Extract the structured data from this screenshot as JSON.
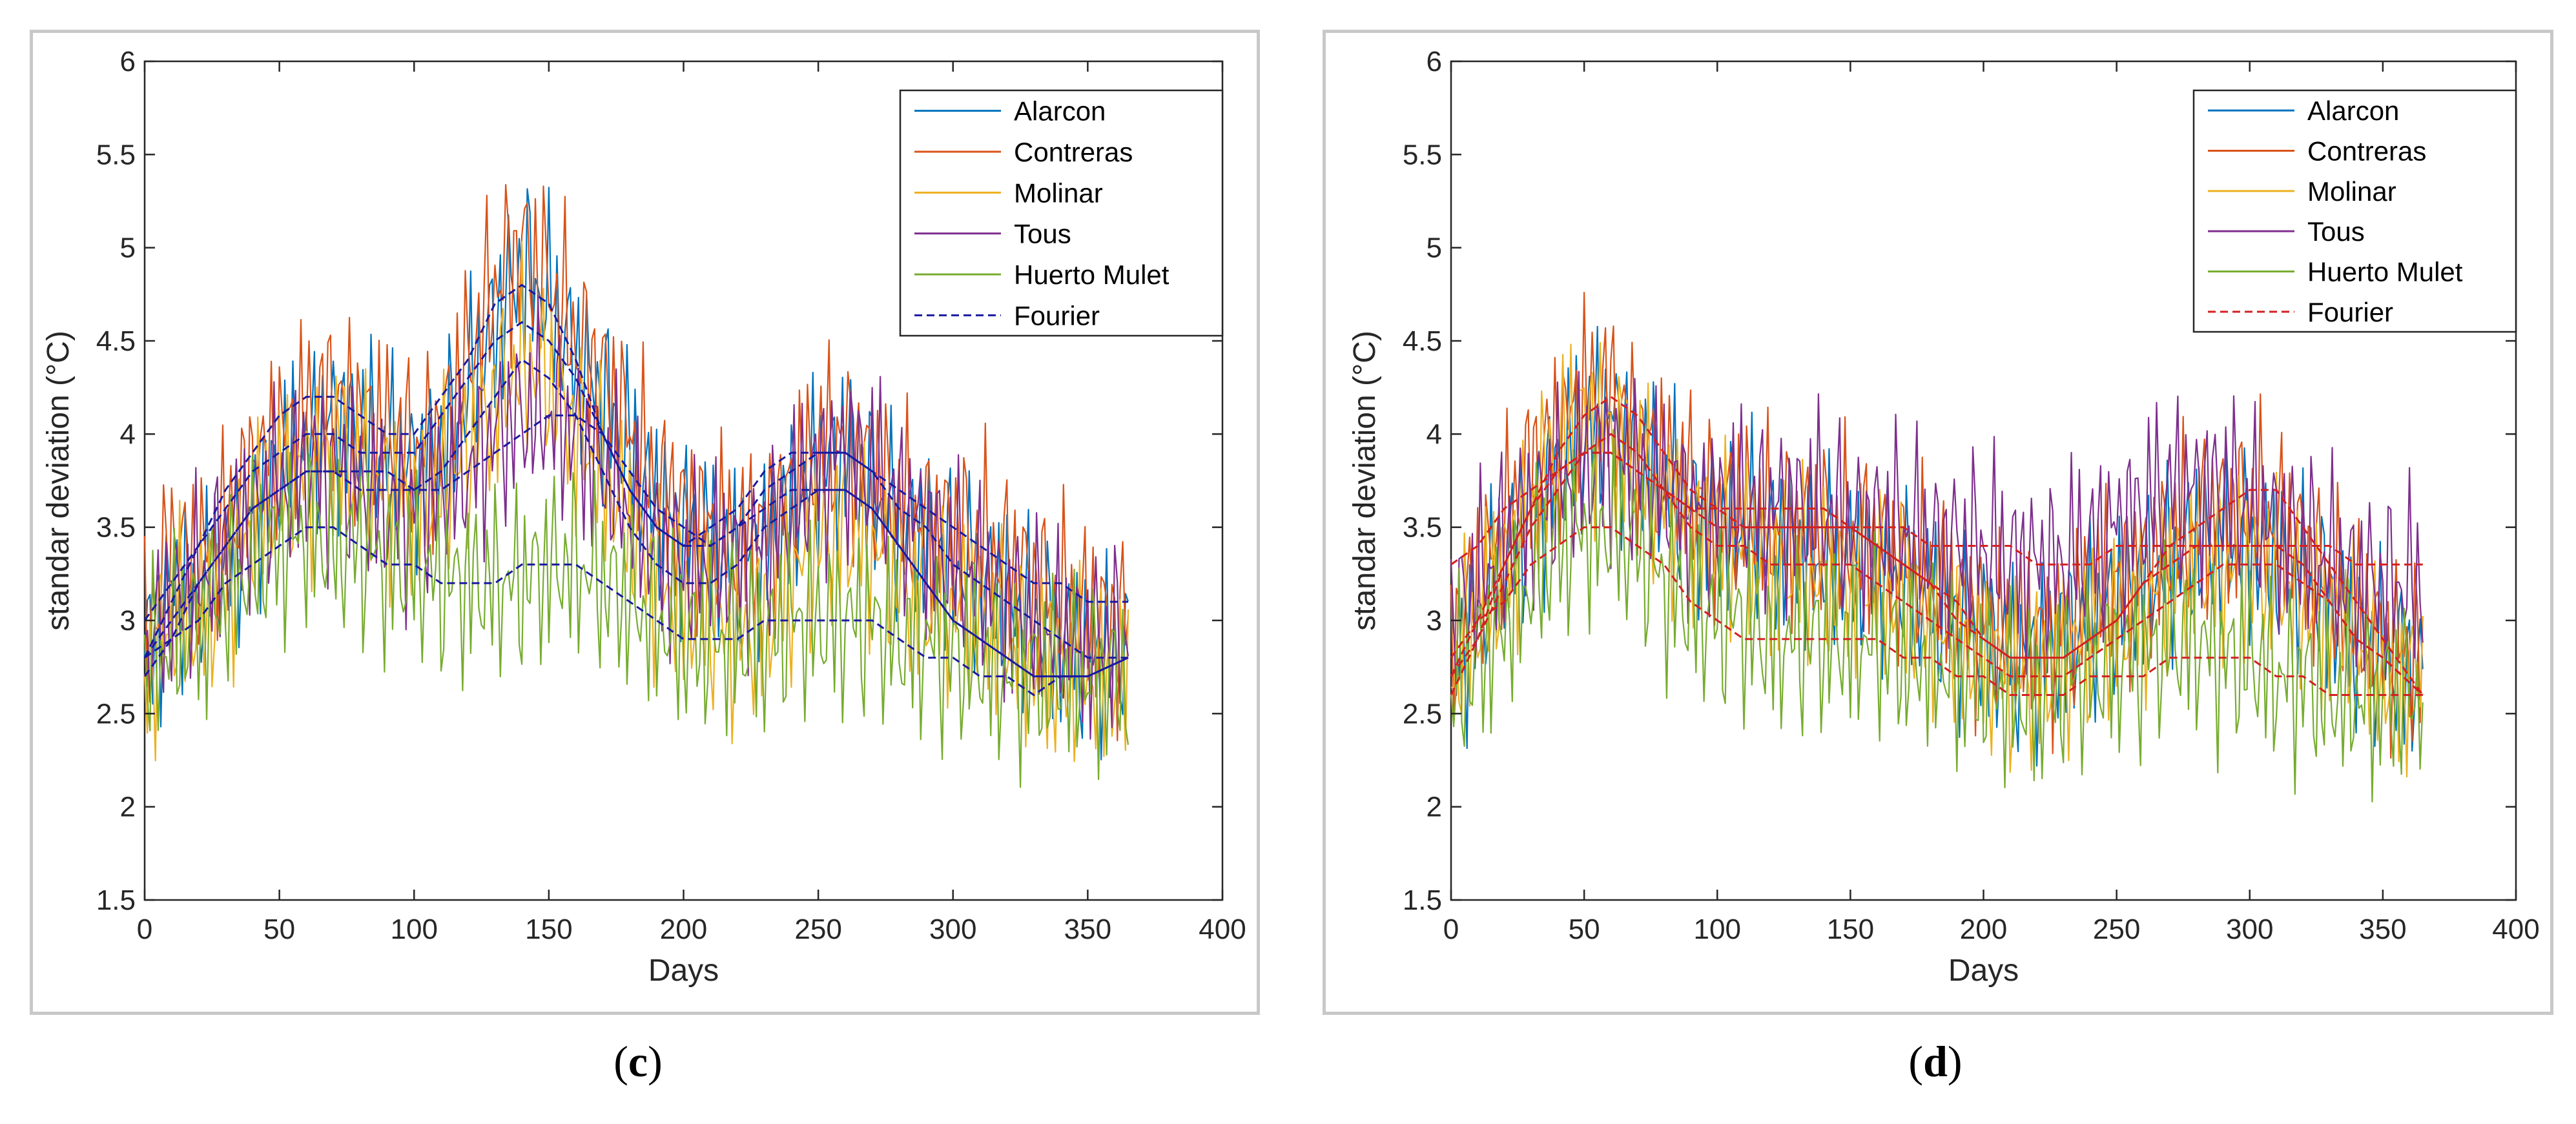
{
  "colors": {
    "Alarcon": "#0072bd",
    "Contreras": "#d95319",
    "Molinar": "#edb120",
    "Tous": "#7e2f8e",
    "Huerto Mulet": "#77ac30",
    "fourier_c": "#1a1aa0",
    "fourier_d": "#d42020"
  },
  "captions": {
    "c": "c",
    "d": "d"
  },
  "chart_data": [
    {
      "id": "c",
      "type": "line",
      "xlabel": "Days",
      "ylabel": "standar deviation (°C)",
      "xlim": [
        0,
        400
      ],
      "ylim": [
        1.5,
        6
      ],
      "xticks": [
        "0",
        "50",
        "100",
        "150",
        "200",
        "250",
        "300",
        "350",
        "400"
      ],
      "yticks": [
        "1.5",
        "2",
        "2.5",
        "3",
        "3.5",
        "4",
        "4.5",
        "5",
        "5.5",
        "6"
      ],
      "grid": false,
      "legend_position": "top-right",
      "legend": [
        "Alarcon",
        "Contreras",
        "Molinar",
        "Tous",
        "Huerto Mulet",
        "Fourier"
      ],
      "fourier_style": "dashed",
      "x": [
        0,
        10,
        20,
        30,
        40,
        50,
        60,
        70,
        80,
        90,
        100,
        110,
        120,
        130,
        140,
        150,
        160,
        170,
        180,
        190,
        200,
        210,
        220,
        230,
        240,
        250,
        260,
        270,
        280,
        290,
        300,
        310,
        320,
        330,
        340,
        350,
        365
      ],
      "series": [
        {
          "name": "Alarcon",
          "values": [
            2.8,
            3.2,
            3.1,
            3.3,
            3.6,
            3.8,
            3.9,
            4.1,
            4.0,
            3.9,
            3.8,
            3.9,
            4.2,
            4.6,
            4.9,
            4.7,
            4.4,
            4.2,
            3.9,
            3.6,
            3.5,
            3.4,
            3.3,
            3.4,
            3.6,
            3.8,
            3.9,
            3.7,
            3.5,
            3.4,
            3.3,
            3.2,
            3.1,
            3.0,
            2.9,
            2.8,
            2.8
          ]
        },
        {
          "name": "Contreras",
          "values": [
            2.9,
            3.4,
            3.3,
            3.5,
            3.8,
            4.0,
            4.1,
            4.2,
            4.1,
            4.0,
            3.9,
            4.0,
            4.4,
            4.8,
            5.0,
            4.8,
            4.5,
            4.3,
            4.0,
            3.7,
            3.6,
            3.5,
            3.4,
            3.5,
            3.7,
            3.9,
            4.0,
            3.8,
            3.6,
            3.5,
            3.5,
            3.4,
            3.3,
            3.2,
            3.1,
            3.0,
            3.0
          ]
        },
        {
          "name": "Molinar",
          "values": [
            2.7,
            3.0,
            3.0,
            3.2,
            3.5,
            3.7,
            3.8,
            3.9,
            3.8,
            3.7,
            3.6,
            3.7,
            3.9,
            4.2,
            4.4,
            4.3,
            4.0,
            3.8,
            3.5,
            3.2,
            3.1,
            3.0,
            2.9,
            3.0,
            3.2,
            3.4,
            3.5,
            3.4,
            3.2,
            3.1,
            3.1,
            3.0,
            2.9,
            2.8,
            2.7,
            2.7,
            2.7
          ]
        },
        {
          "name": "Tous",
          "values": [
            2.8,
            3.1,
            3.2,
            3.4,
            3.6,
            3.7,
            3.8,
            3.8,
            3.7,
            3.6,
            3.6,
            3.7,
            3.8,
            4.0,
            4.1,
            4.1,
            4.0,
            3.8,
            3.6,
            3.4,
            3.3,
            3.3,
            3.3,
            3.4,
            3.6,
            3.8,
            3.9,
            3.8,
            3.6,
            3.5,
            3.3,
            3.2,
            3.1,
            3.0,
            2.9,
            2.9,
            2.9
          ]
        },
        {
          "name": "Huerto Mulet",
          "values": [
            2.7,
            2.9,
            3.0,
            3.1,
            3.3,
            3.4,
            3.5,
            3.4,
            3.4,
            3.3,
            3.3,
            3.2,
            3.2,
            3.2,
            3.2,
            3.3,
            3.3,
            3.2,
            3.1,
            3.0,
            2.9,
            2.9,
            2.9,
            2.9,
            3.0,
            3.0,
            3.0,
            3.0,
            2.9,
            2.9,
            2.8,
            2.8,
            2.7,
            2.7,
            2.7,
            2.7,
            2.7
          ]
        }
      ],
      "fourier": [
        [
          2.8,
          3.1,
          3.4,
          3.7,
          3.9,
          4.1,
          4.2,
          4.2,
          4.1,
          4.0,
          4.0,
          4.2,
          4.4,
          4.7,
          4.8,
          4.7,
          4.4,
          4.0,
          3.7,
          3.5,
          3.4,
          3.4,
          3.5,
          3.7,
          3.8,
          3.9,
          3.9,
          3.8,
          3.6,
          3.5,
          3.3,
          3.2,
          3.1,
          3.0,
          2.9,
          2.8,
          2.8
        ],
        [
          3.0,
          3.2,
          3.4,
          3.6,
          3.8,
          3.9,
          4.0,
          4.0,
          3.9,
          3.9,
          3.9,
          4.1,
          4.3,
          4.5,
          4.6,
          4.5,
          4.3,
          4.0,
          3.7,
          3.5,
          3.4,
          3.5,
          3.6,
          3.8,
          3.9,
          3.9,
          3.9,
          3.8,
          3.7,
          3.6,
          3.5,
          3.4,
          3.3,
          3.2,
          3.2,
          3.1,
          3.1
        ],
        [
          2.7,
          2.9,
          3.2,
          3.4,
          3.6,
          3.7,
          3.8,
          3.8,
          3.7,
          3.7,
          3.7,
          3.8,
          4.0,
          4.2,
          4.4,
          4.3,
          4.1,
          3.8,
          3.5,
          3.3,
          3.2,
          3.2,
          3.3,
          3.5,
          3.6,
          3.7,
          3.7,
          3.6,
          3.4,
          3.2,
          3.0,
          2.9,
          2.8,
          2.7,
          2.7,
          2.7,
          2.8
        ],
        [
          2.8,
          3.0,
          3.2,
          3.4,
          3.6,
          3.7,
          3.8,
          3.8,
          3.8,
          3.8,
          3.7,
          3.7,
          3.8,
          3.9,
          4.0,
          4.1,
          4.1,
          4.0,
          3.8,
          3.6,
          3.5,
          3.4,
          3.5,
          3.6,
          3.7,
          3.7,
          3.7,
          3.6,
          3.4,
          3.2,
          3.0,
          2.9,
          2.8,
          2.7,
          2.7,
          2.7,
          2.8
        ],
        [
          2.8,
          2.9,
          3.0,
          3.2,
          3.3,
          3.4,
          3.5,
          3.5,
          3.4,
          3.3,
          3.3,
          3.2,
          3.2,
          3.2,
          3.3,
          3.3,
          3.3,
          3.2,
          3.1,
          3.0,
          2.9,
          2.9,
          2.9,
          3.0,
          3.0,
          3.0,
          3.0,
          3.0,
          2.9,
          2.8,
          2.8,
          2.7,
          2.7,
          2.6,
          2.7,
          2.7,
          2.8
        ]
      ]
    },
    {
      "id": "d",
      "type": "line",
      "xlabel": "Days",
      "ylabel": "standar deviation (°C)",
      "xlim": [
        0,
        400
      ],
      "ylim": [
        1.5,
        6
      ],
      "xticks": [
        "0",
        "50",
        "100",
        "150",
        "200",
        "250",
        "300",
        "350",
        "400"
      ],
      "yticks": [
        "1.5",
        "2",
        "2.5",
        "3",
        "3.5",
        "4",
        "4.5",
        "5",
        "5.5",
        "6"
      ],
      "grid": false,
      "legend_position": "top-right",
      "legend": [
        "Alarcon",
        "Contreras",
        "Molinar",
        "Tous",
        "Huerto Mulet",
        "Fourier"
      ],
      "fourier_style": "dashed",
      "x": [
        0,
        10,
        20,
        30,
        40,
        50,
        60,
        70,
        80,
        90,
        100,
        110,
        120,
        130,
        140,
        150,
        160,
        170,
        180,
        190,
        200,
        210,
        220,
        230,
        240,
        250,
        260,
        270,
        280,
        290,
        300,
        310,
        320,
        330,
        340,
        350,
        365
      ],
      "series": [
        {
          "name": "Alarcon",
          "values": [
            2.8,
            3.0,
            3.3,
            3.6,
            3.8,
            4.0,
            4.1,
            3.9,
            3.7,
            3.6,
            3.5,
            3.5,
            3.4,
            3.4,
            3.3,
            3.3,
            3.3,
            3.2,
            3.1,
            3.0,
            2.9,
            2.8,
            2.8,
            2.9,
            3.0,
            3.1,
            3.2,
            3.3,
            3.4,
            3.4,
            3.4,
            3.3,
            3.2,
            3.1,
            2.9,
            2.8,
            2.7
          ]
        },
        {
          "name": "Contreras",
          "values": [
            2.9,
            3.2,
            3.5,
            3.8,
            4.0,
            4.2,
            4.2,
            4.0,
            3.8,
            3.7,
            3.6,
            3.6,
            3.5,
            3.5,
            3.5,
            3.4,
            3.4,
            3.3,
            3.2,
            3.1,
            3.0,
            2.9,
            2.9,
            3.0,
            3.1,
            3.2,
            3.3,
            3.4,
            3.5,
            3.6,
            3.6,
            3.5,
            3.4,
            3.2,
            3.0,
            2.9,
            2.8
          ]
        },
        {
          "name": "Molinar",
          "values": [
            2.7,
            3.0,
            3.3,
            3.6,
            3.9,
            4.1,
            4.0,
            3.8,
            3.6,
            3.5,
            3.4,
            3.4,
            3.3,
            3.3,
            3.2,
            3.2,
            3.2,
            3.1,
            3.0,
            2.9,
            2.8,
            2.7,
            2.7,
            2.8,
            2.9,
            3.0,
            3.1,
            3.2,
            3.3,
            3.3,
            3.3,
            3.2,
            3.1,
            3.0,
            2.9,
            2.7,
            2.7
          ]
        },
        {
          "name": "Tous",
          "values": [
            3.0,
            3.2,
            3.4,
            3.6,
            3.7,
            3.8,
            3.9,
            3.8,
            3.7,
            3.6,
            3.6,
            3.6,
            3.6,
            3.6,
            3.6,
            3.5,
            3.5,
            3.5,
            3.4,
            3.4,
            3.4,
            3.3,
            3.3,
            3.3,
            3.4,
            3.5,
            3.6,
            3.7,
            3.7,
            3.7,
            3.6,
            3.5,
            3.4,
            3.3,
            3.2,
            3.2,
            3.2
          ]
        },
        {
          "name": "Huerto Mulet",
          "values": [
            2.6,
            2.8,
            3.0,
            3.2,
            3.4,
            3.5,
            3.5,
            3.4,
            3.2,
            3.1,
            3.0,
            3.0,
            2.9,
            2.9,
            2.9,
            2.9,
            2.9,
            2.8,
            2.8,
            2.7,
            2.7,
            2.6,
            2.6,
            2.7,
            2.7,
            2.8,
            2.8,
            2.9,
            2.9,
            2.8,
            2.8,
            2.7,
            2.7,
            2.6,
            2.6,
            2.6,
            2.6
          ]
        }
      ],
      "fourier": [
        [
          2.6,
          2.9,
          3.3,
          3.6,
          3.9,
          4.1,
          4.2,
          4.1,
          3.9,
          3.7,
          3.6,
          3.5,
          3.5,
          3.5,
          3.5,
          3.5,
          3.4,
          3.3,
          3.2,
          3.0,
          2.9,
          2.8,
          2.8,
          2.8,
          2.9,
          3.0,
          3.2,
          3.4,
          3.5,
          3.6,
          3.7,
          3.7,
          3.5,
          3.3,
          3.1,
          2.9,
          2.6
        ],
        [
          2.7,
          3.0,
          3.3,
          3.6,
          3.8,
          3.9,
          4.0,
          3.9,
          3.7,
          3.6,
          3.5,
          3.5,
          3.5,
          3.5,
          3.5,
          3.5,
          3.4,
          3.3,
          3.2,
          3.1,
          2.9,
          2.8,
          2.8,
          2.8,
          2.9,
          3.0,
          3.2,
          3.3,
          3.4,
          3.4,
          3.4,
          3.4,
          3.3,
          3.1,
          2.9,
          2.8,
          2.6
        ],
        [
          2.7,
          2.9,
          3.2,
          3.5,
          3.7,
          3.9,
          3.9,
          3.8,
          3.7,
          3.5,
          3.4,
          3.4,
          3.3,
          3.3,
          3.3,
          3.3,
          3.2,
          3.1,
          3.0,
          2.9,
          2.8,
          2.7,
          2.7,
          2.7,
          2.8,
          2.9,
          3.0,
          3.1,
          3.2,
          3.3,
          3.3,
          3.3,
          3.2,
          3.1,
          2.9,
          2.8,
          2.6
        ],
        [
          3.3,
          3.4,
          3.6,
          3.7,
          3.8,
          3.9,
          3.9,
          3.8,
          3.7,
          3.6,
          3.6,
          3.6,
          3.6,
          3.6,
          3.6,
          3.5,
          3.5,
          3.5,
          3.4,
          3.4,
          3.4,
          3.4,
          3.3,
          3.3,
          3.3,
          3.4,
          3.4,
          3.4,
          3.4,
          3.4,
          3.4,
          3.4,
          3.4,
          3.4,
          3.3,
          3.3,
          3.3
        ],
        [
          2.8,
          3.0,
          3.1,
          3.3,
          3.4,
          3.5,
          3.5,
          3.4,
          3.3,
          3.1,
          3.0,
          2.9,
          2.9,
          2.9,
          2.9,
          2.9,
          2.9,
          2.8,
          2.8,
          2.7,
          2.7,
          2.6,
          2.6,
          2.6,
          2.7,
          2.7,
          2.7,
          2.8,
          2.8,
          2.8,
          2.8,
          2.7,
          2.7,
          2.6,
          2.6,
          2.6,
          2.6
        ]
      ]
    }
  ]
}
